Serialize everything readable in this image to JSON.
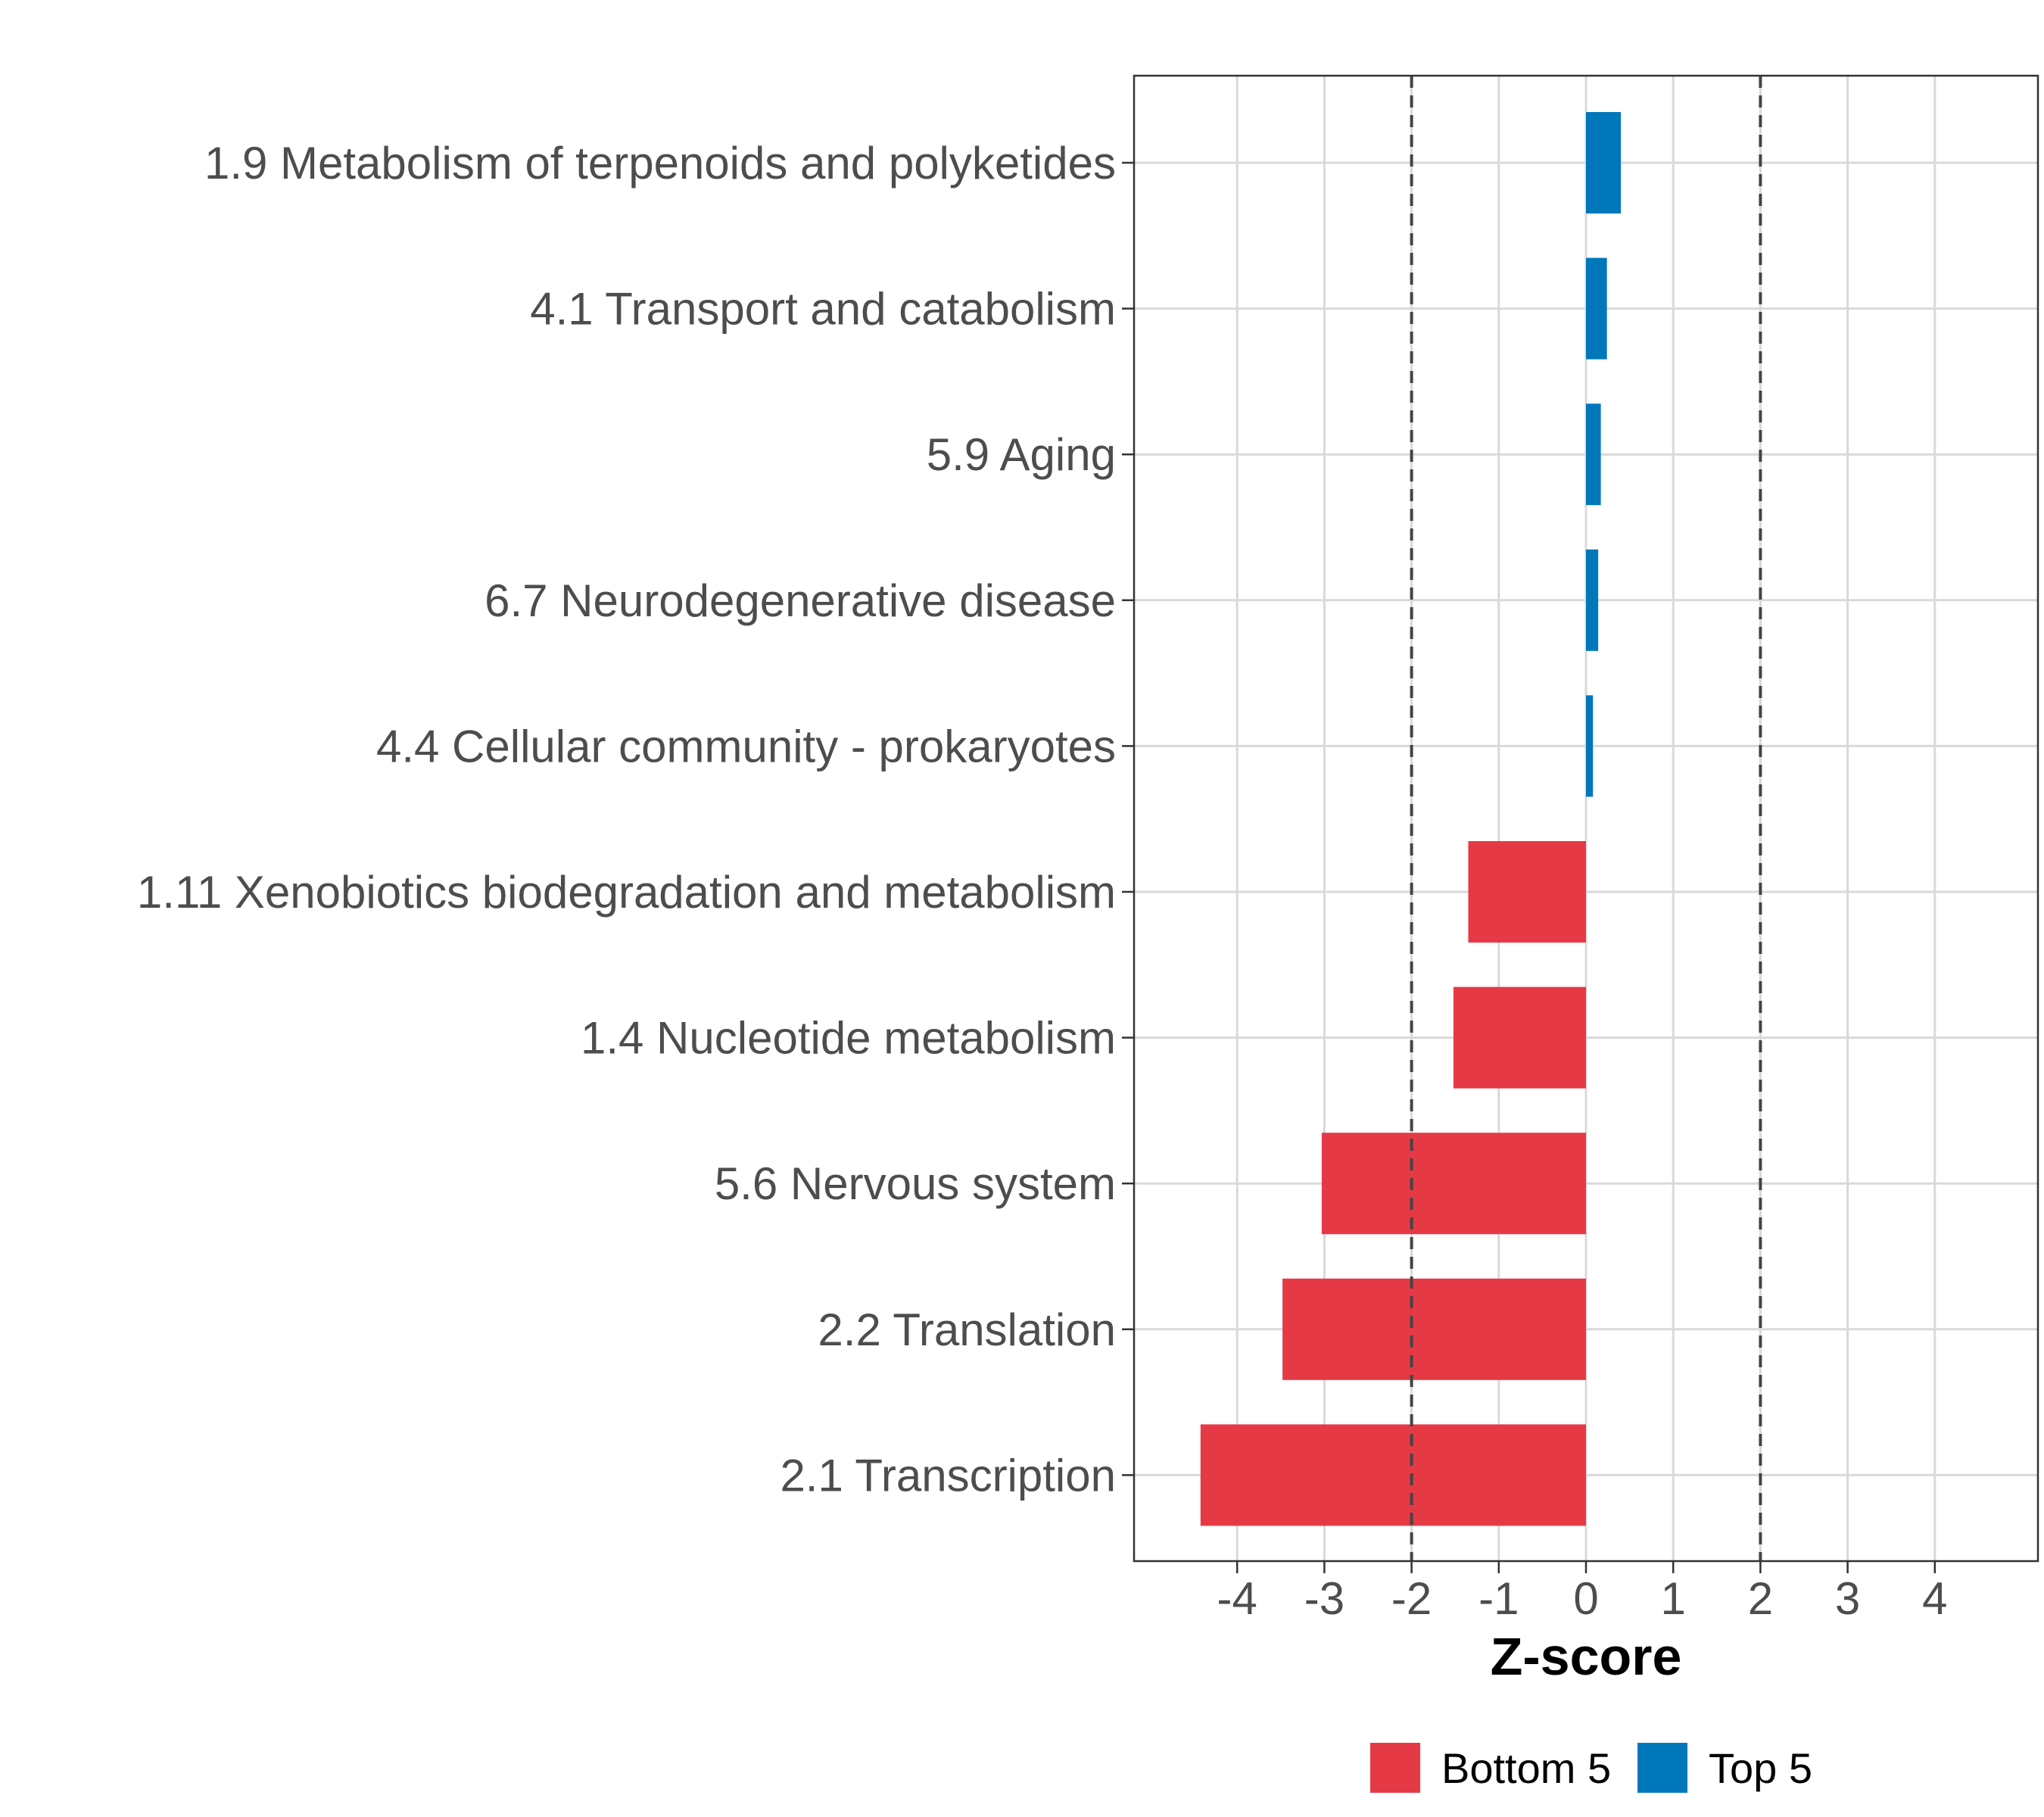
{
  "chart_data": {
    "type": "bar",
    "orientation": "horizontal",
    "title": "",
    "xlabel": "Z-score",
    "ylabel": "",
    "xlim": [
      -5.2,
      5.2
    ],
    "xticks": [
      -4,
      -3,
      -2,
      -1,
      0,
      1,
      2,
      3,
      4
    ],
    "xtick_labels": [
      "-4",
      "-3",
      "-2",
      "-1",
      "0",
      "1",
      "2",
      "3",
      "4"
    ],
    "reference_lines": [
      -2,
      2
    ],
    "grid": true,
    "legend_position": "bottom",
    "categories": [
      "1.9 Metabolism of terpenoids and polyketides",
      "4.1 Transport and catabolism",
      "5.9 Aging",
      "6.7 Neurodegenerative disease",
      "4.4 Cellular community - prokaryotes",
      "1.11 Xenobiotics biodegradation and metabolism",
      "1.4 Nucleotide metabolism",
      "5.6 Nervous system",
      "2.2 Translation",
      "2.1 Transcription"
    ],
    "values": [
      0.4,
      0.24,
      0.17,
      0.14,
      0.08,
      -1.35,
      -1.52,
      -3.03,
      -3.48,
      -4.42
    ],
    "groups": [
      "Top 5",
      "Top 5",
      "Top 5",
      "Top 5",
      "Top 5",
      "Bottom 5",
      "Bottom 5",
      "Bottom 5",
      "Bottom 5",
      "Bottom 5"
    ],
    "legend": [
      {
        "name": "Bottom 5",
        "color": "#e63946"
      },
      {
        "name": "Top 5",
        "color": "#0077bb"
      }
    ]
  }
}
